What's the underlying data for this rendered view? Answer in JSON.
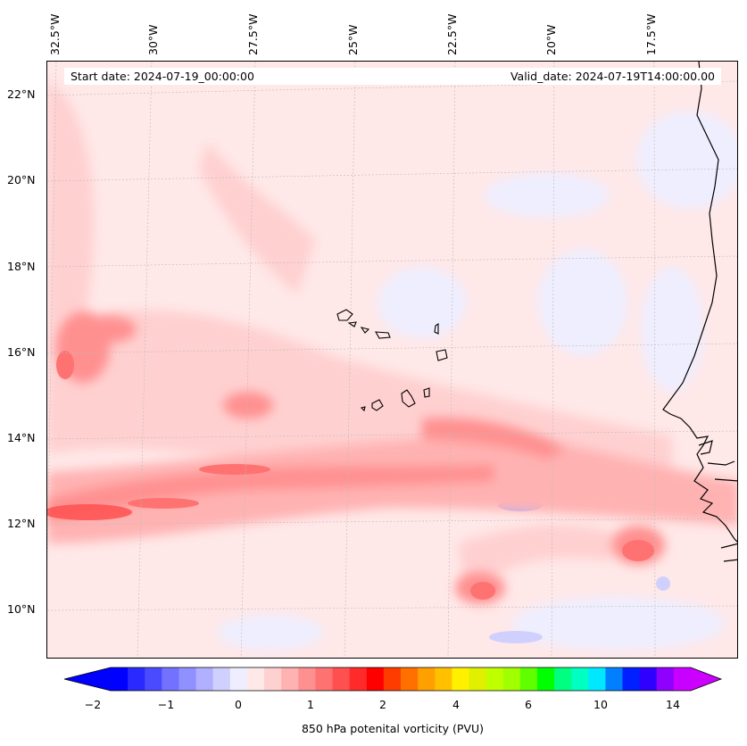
{
  "map": {
    "start_date": "Start date: 2024-07-19_00:00:00",
    "valid_date": "Valid_date: 2024-07-19T14:00:00.00",
    "lon_labels": [
      "32.5°W",
      "30°W",
      "27.5°W",
      "25°W",
      "22.5°W",
      "20°W",
      "17.5°W"
    ],
    "lat_labels": [
      "22°N",
      "20°N",
      "18°N",
      "16°N",
      "14°N",
      "12°N",
      "10°N"
    ],
    "lon_values": [
      -32.5,
      -30,
      -27.5,
      -25,
      -22.5,
      -20,
      -17.5
    ],
    "lat_values": [
      22,
      20,
      18,
      16,
      14,
      12,
      10
    ],
    "extent": {
      "lon_min": -32.6,
      "lon_max": -15.2,
      "lat_min": 8.9,
      "lat_max": 22.8
    },
    "coastline": true,
    "gridlines": true
  },
  "colorbar": {
    "label": "850 hPa potenital vorticity (PVU)",
    "tick_labels": [
      "−2",
      "−1",
      "0",
      "1",
      "2",
      "4",
      "6",
      "10",
      "14"
    ],
    "colors": [
      "#0000ff",
      "#2a2aff",
      "#4a4aff",
      "#7272ff",
      "#9090ff",
      "#b0b0ff",
      "#d0d0ff",
      "#eeeeff",
      "#ffe8e8",
      "#ffd0d0",
      "#ffb2b2",
      "#ff9090",
      "#ff7272",
      "#ff5050",
      "#ff2a2a",
      "#ff0000",
      "#ff3c00",
      "#ff7000",
      "#ffa000",
      "#ffc000",
      "#fff000",
      "#e0f000",
      "#c0ff00",
      "#a0ff00",
      "#60ff00",
      "#00ff00",
      "#00ff80",
      "#00ffc0",
      "#00e8ff",
      "#0080ff",
      "#0020ff",
      "#3000ff",
      "#9000ff",
      "#c800ff"
    ],
    "extend_low": "#0000ff",
    "extend_high": "#cc00ff"
  }
}
